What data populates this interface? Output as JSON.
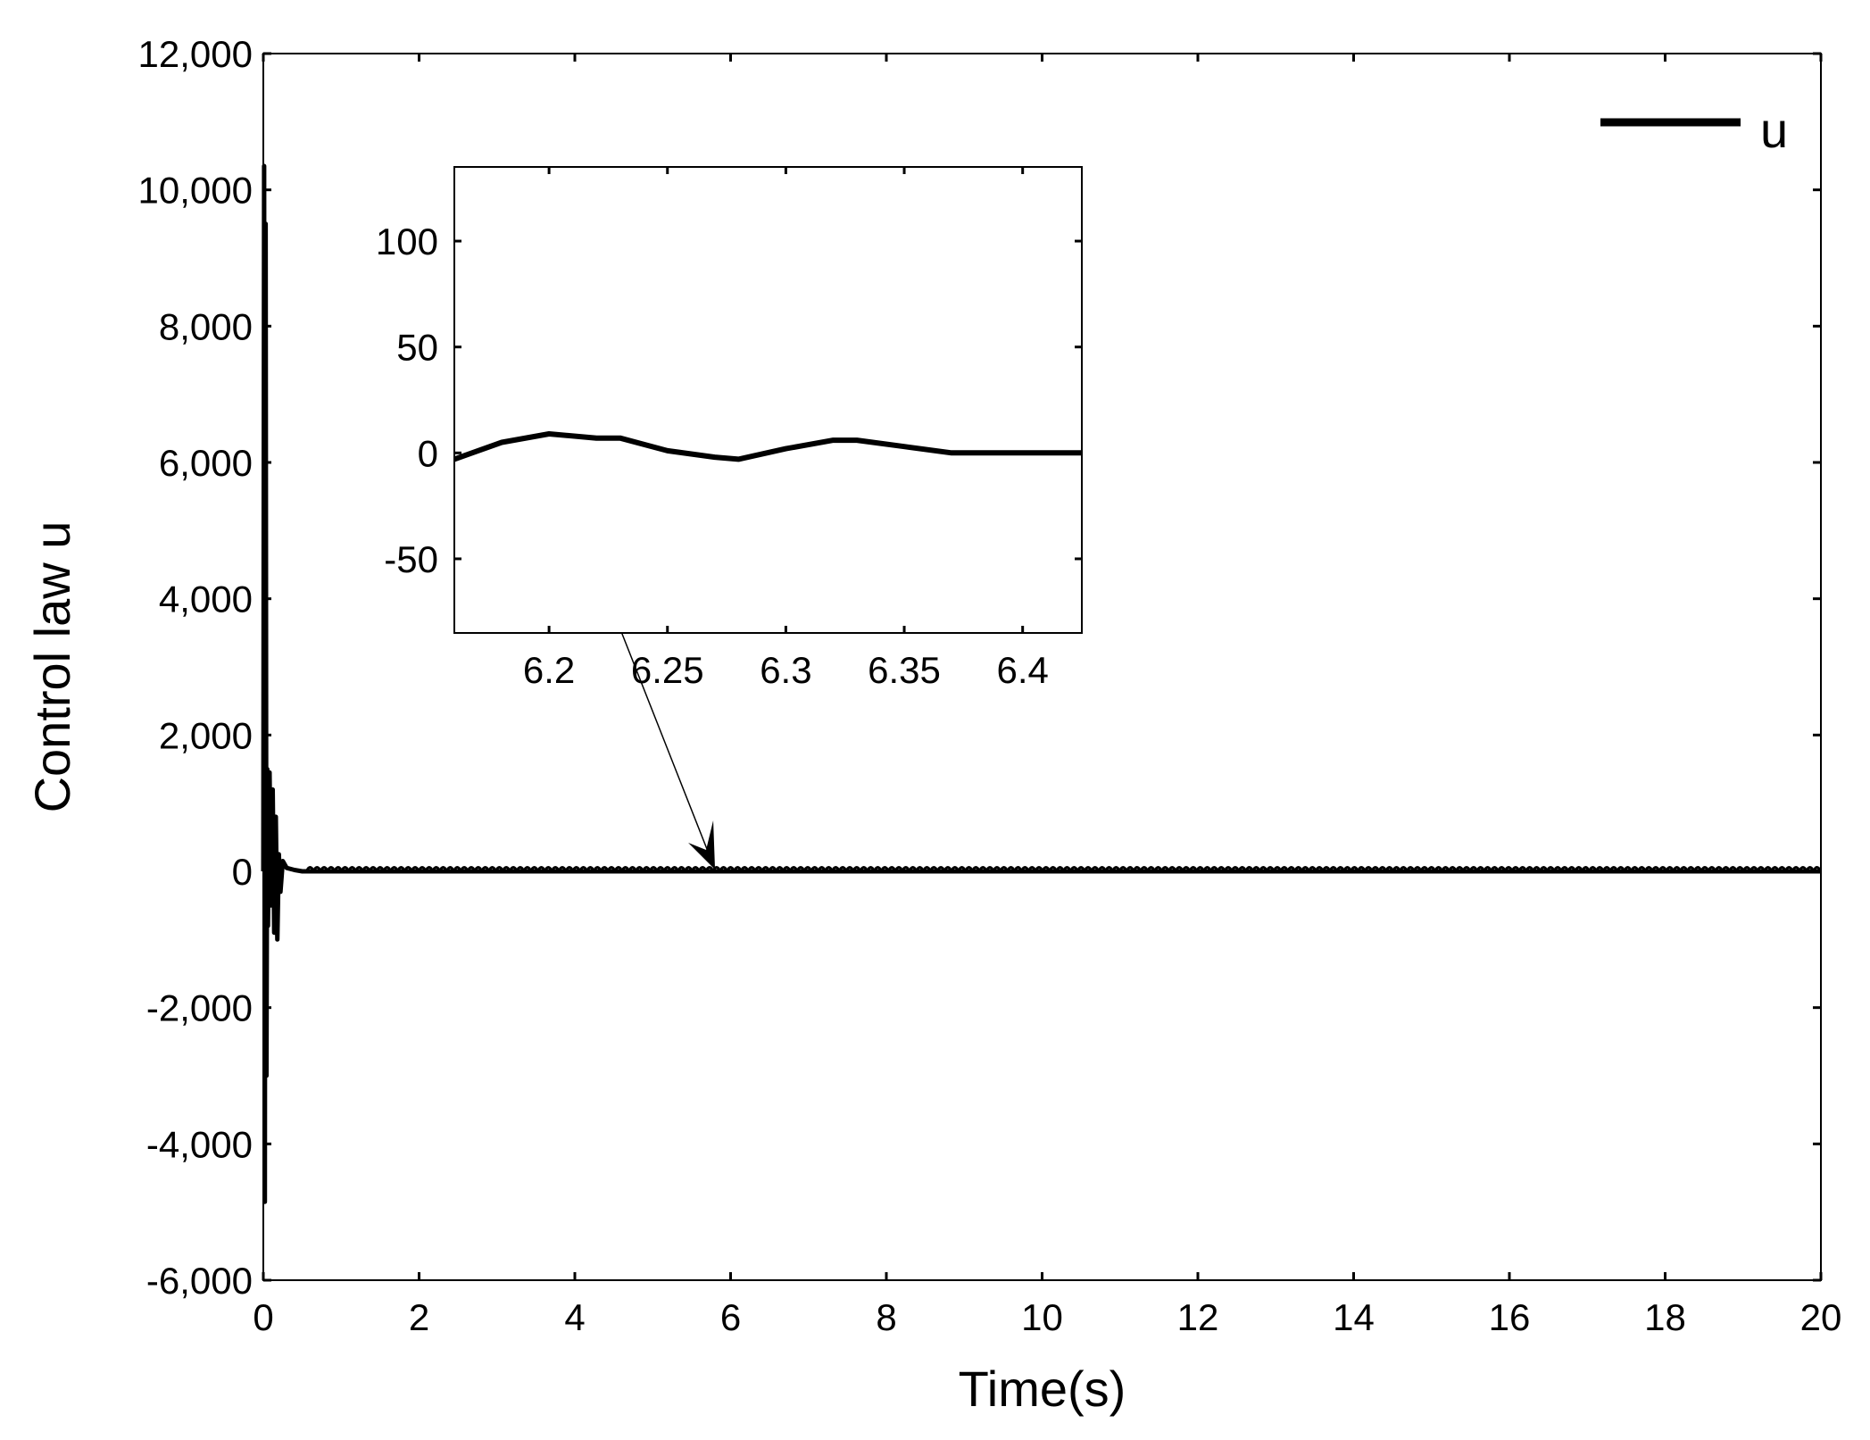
{
  "chart_data": [
    {
      "type": "line",
      "panel": "main",
      "xlabel": "Time(s)",
      "ylabel": "Control law u",
      "xlim": [
        0,
        20
      ],
      "ylim": [
        -6000,
        12000
      ],
      "xticks": [
        0,
        2,
        4,
        6,
        8,
        10,
        12,
        14,
        16,
        18,
        20
      ],
      "yticks": [
        -6000,
        -4000,
        -2000,
        0,
        2000,
        4000,
        6000,
        8000,
        10000,
        12000
      ],
      "xtick_labels": [
        "0",
        "2",
        "4",
        "6",
        "8",
        "10",
        "12",
        "14",
        "16",
        "18",
        "20"
      ],
      "ytick_labels": [
        "-6,000",
        "-4,000",
        "-2,000",
        "0",
        "2,000",
        "4,000",
        "6,000",
        "8,000",
        "10,000",
        "12,000"
      ],
      "grid": false,
      "legend": {
        "position": "top-right",
        "entries": [
          "u"
        ]
      },
      "series": [
        {
          "name": "u",
          "color": "#000000",
          "x": [
            0,
            0.01,
            0.02,
            0.03,
            0.04,
            0.05,
            0.06,
            0.08,
            0.1,
            0.12,
            0.14,
            0.16,
            0.18,
            0.2,
            0.22,
            0.25,
            0.3,
            0.4,
            0.5,
            1,
            2,
            4,
            6,
            8,
            10,
            12,
            14,
            16,
            18,
            20
          ],
          "y": [
            0,
            10350,
            -4850,
            9500,
            -3000,
            1500,
            -800,
            1450,
            -500,
            1200,
            -900,
            800,
            -1000,
            250,
            -300,
            150,
            50,
            20,
            0,
            0,
            0,
            0,
            0,
            0,
            0,
            0,
            0,
            0,
            0,
            0
          ]
        }
      ]
    },
    {
      "type": "line",
      "panel": "inset",
      "xlim": [
        6.16,
        6.425
      ],
      "ylim": [
        -85,
        135
      ],
      "xticks": [
        6.2,
        6.25,
        6.3,
        6.35,
        6.4
      ],
      "yticks": [
        -50,
        0,
        50,
        100
      ],
      "xtick_labels": [
        "6.2",
        "6.25",
        "6.3",
        "6.35",
        "6.4"
      ],
      "ytick_labels": [
        "-50",
        "0",
        "50",
        "100"
      ],
      "grid": false,
      "annotation": {
        "type": "arrow",
        "points_to": {
          "x": 5.8,
          "y": 0
        }
      },
      "series": [
        {
          "name": "u",
          "color": "#000000",
          "x": [
            6.16,
            6.18,
            6.2,
            6.22,
            6.23,
            6.25,
            6.27,
            6.28,
            6.3,
            6.32,
            6.33,
            6.35,
            6.37,
            6.38,
            6.4,
            6.425
          ],
          "y": [
            -3,
            5,
            9,
            7,
            7,
            1,
            -2,
            -3,
            2,
            6,
            6,
            3,
            0,
            0,
            0,
            0
          ]
        }
      ]
    }
  ]
}
